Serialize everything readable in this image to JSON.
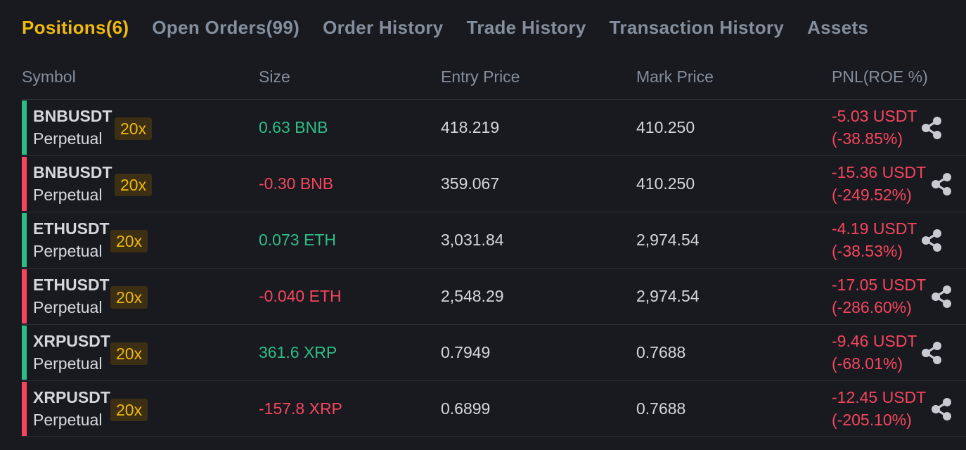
{
  "tabs": [
    {
      "label": "Positions(6)",
      "active": true
    },
    {
      "label": "Open Orders(99)",
      "active": false
    },
    {
      "label": "Order History",
      "active": false
    },
    {
      "label": "Trade History",
      "active": false
    },
    {
      "label": "Transaction History",
      "active": false
    },
    {
      "label": "Assets",
      "active": false
    }
  ],
  "columns": {
    "symbol": "Symbol",
    "size": "Size",
    "entry_price": "Entry Price",
    "mark_price": "Mark Price",
    "pnl": "PNL(ROE %)"
  },
  "colors": {
    "accent": "#f0b90b",
    "long": "#2ebd85",
    "short": "#f6465d",
    "background": "#181a20"
  },
  "positions": [
    {
      "symbol": "BNBUSDT",
      "type": "Perpetual",
      "leverage": "20x",
      "side": "long",
      "size": "0.63 BNB",
      "entry_price": "418.219",
      "mark_price": "410.250",
      "pnl": "-5.03 USDT",
      "roe": "(-38.85%)",
      "share_icon": "share-icon"
    },
    {
      "symbol": "BNBUSDT",
      "type": "Perpetual",
      "leverage": "20x",
      "side": "short",
      "size": "-0.30 BNB",
      "entry_price": "359.067",
      "mark_price": "410.250",
      "pnl": "-15.36 USDT",
      "roe": "(-249.52%)",
      "share_icon": "share-icon"
    },
    {
      "symbol": "ETHUSDT",
      "type": "Perpetual",
      "leverage": "20x",
      "side": "long",
      "size": "0.073 ETH",
      "entry_price": "3,031.84",
      "mark_price": "2,974.54",
      "pnl": "-4.19 USDT",
      "roe": "(-38.53%)",
      "share_icon": "share-icon"
    },
    {
      "symbol": "ETHUSDT",
      "type": "Perpetual",
      "leverage": "20x",
      "side": "short",
      "size": "-0.040 ETH",
      "entry_price": "2,548.29",
      "mark_price": "2,974.54",
      "pnl": "-17.05 USDT",
      "roe": "(-286.60%)",
      "share_icon": "share-icon"
    },
    {
      "symbol": "XRPUSDT",
      "type": "Perpetual",
      "leverage": "20x",
      "side": "long",
      "size": "361.6 XRP",
      "entry_price": "0.7949",
      "mark_price": "0.7688",
      "pnl": "-9.46 USDT",
      "roe": "(-68.01%)",
      "share_icon": "share-icon"
    },
    {
      "symbol": "XRPUSDT",
      "type": "Perpetual",
      "leverage": "20x",
      "side": "short",
      "size": "-157.8 XRP",
      "entry_price": "0.6899",
      "mark_price": "0.7688",
      "pnl": "-12.45 USDT",
      "roe": "(-205.10%)",
      "share_icon": "share-icon"
    }
  ]
}
